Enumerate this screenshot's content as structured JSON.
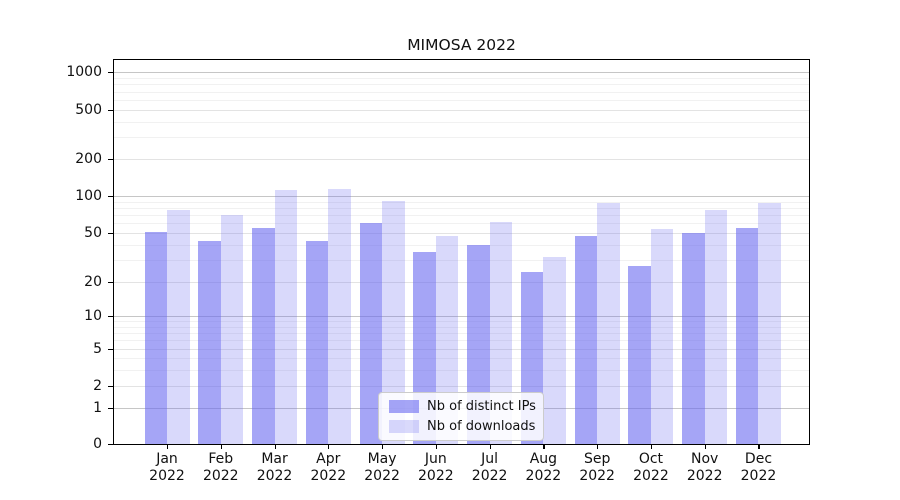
{
  "title": "MIMOSA 2022",
  "chart_data": {
    "type": "bar",
    "title": "MIMOSA 2022",
    "categories": [
      "Jan",
      "Feb",
      "Mar",
      "Apr",
      "May",
      "Jun",
      "Jul",
      "Aug",
      "Sep",
      "Oct",
      "Nov",
      "Dec"
    ],
    "year_label": "2022",
    "series": [
      {
        "name": "Nb of distinct IPs",
        "color": "rgba(105,105,240,0.60)",
        "values": [
          51,
          43,
          55,
          43,
          60,
          35,
          40,
          24,
          47,
          27,
          50,
          55
        ]
      },
      {
        "name": "Nb of downloads",
        "color": "rgba(105,105,240,0.25)",
        "values": [
          77,
          70,
          112,
          114,
          91,
          47,
          62,
          32,
          87,
          54,
          77,
          87
        ]
      }
    ],
    "yscale": "symlog",
    "yticks": [
      0,
      1,
      2,
      5,
      10,
      20,
      50,
      100,
      200,
      500,
      1000
    ],
    "ylim": [
      0,
      1200
    ],
    "grid": true,
    "legend_position": "bottom-center",
    "grid_major_color": "#c6c6c6",
    "grid_mid_color": "#e3e3e3",
    "grid_minor_color": "#f1f1f1"
  }
}
